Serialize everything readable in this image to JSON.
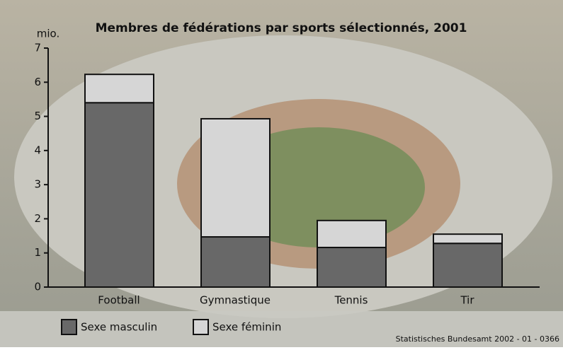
{
  "chart_data": {
    "type": "stacked_bar",
    "title": "Membres de fédérations par sports sélectionnés, 2001",
    "y_label": "mio.",
    "categories": [
      "Football",
      "Gymnastique",
      "Tennis",
      "Tir"
    ],
    "series": [
      {
        "name": "Sexe masculin",
        "color": "#686868",
        "values": [
          5.4,
          1.47,
          1.16,
          1.28
        ]
      },
      {
        "name": "Sexe féminin",
        "color": "#d6d6d6",
        "values": [
          0.83,
          3.46,
          0.79,
          0.27
        ]
      }
    ],
    "ylim": [
      0,
      7
    ],
    "yticks": [
      0,
      1,
      2,
      3,
      4,
      5,
      6,
      7
    ],
    "source": "Statistisches Bundesamt 2002 - 01 - 0366"
  }
}
